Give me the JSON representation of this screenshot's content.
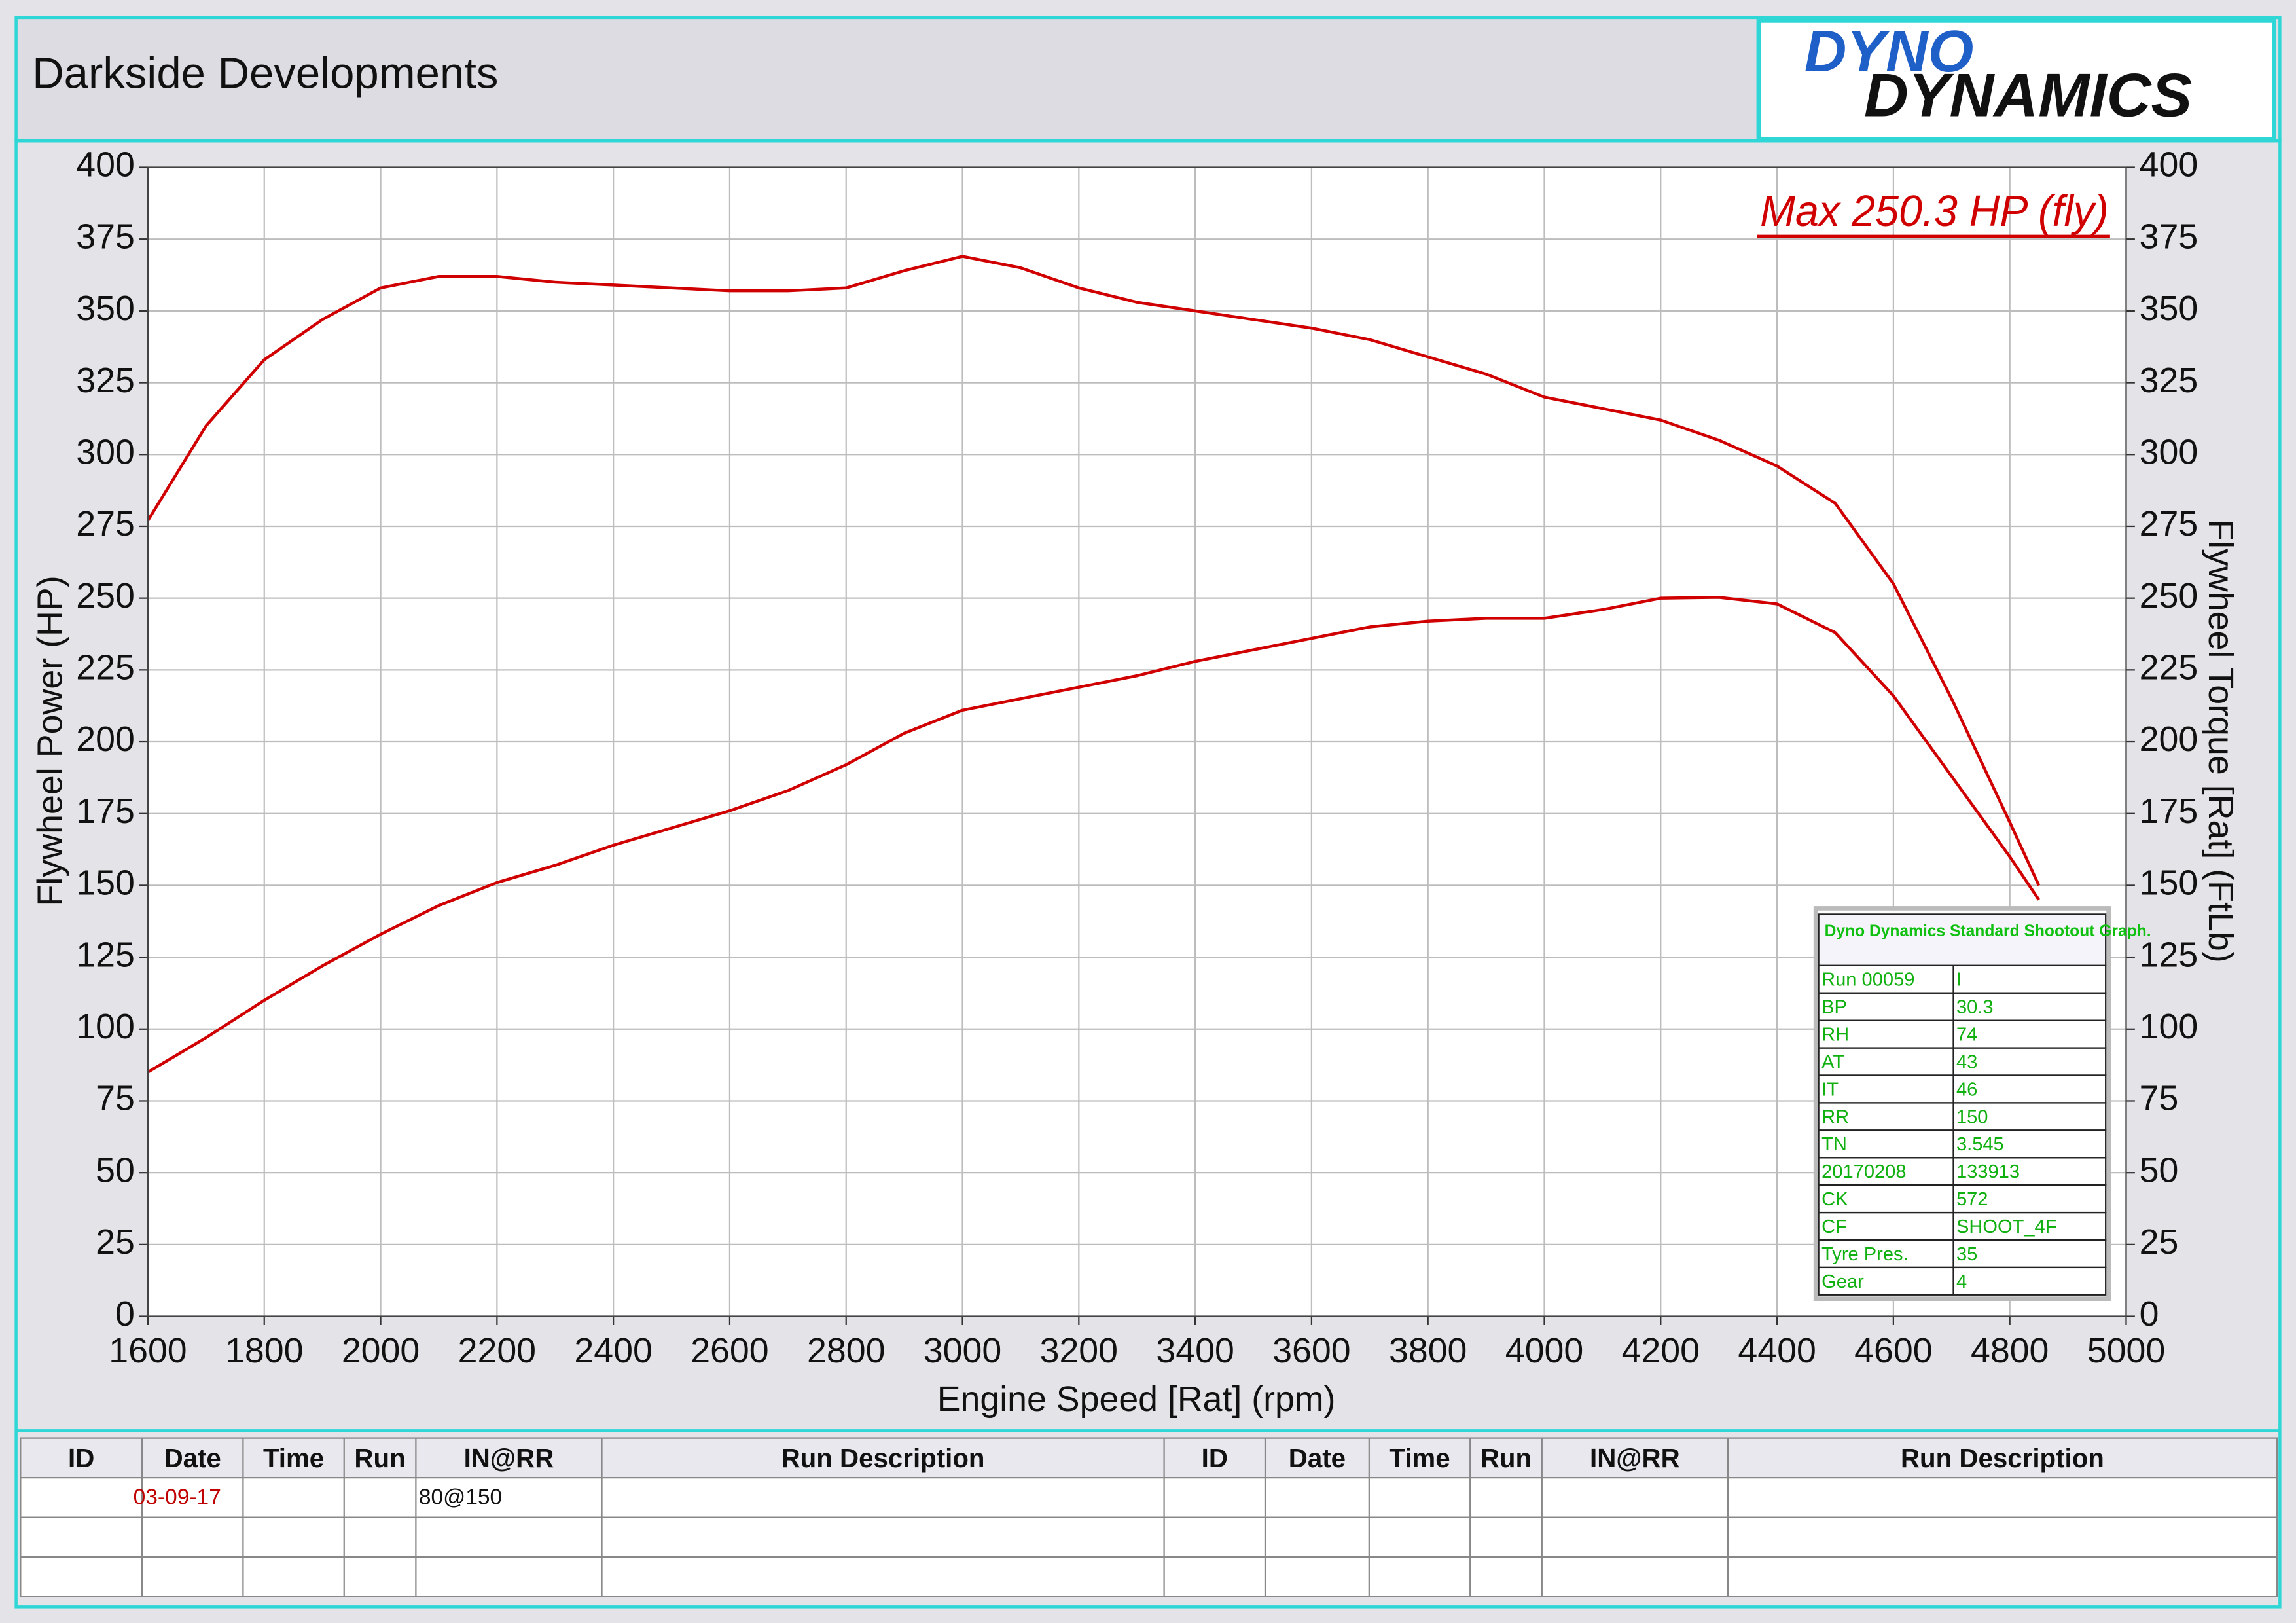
{
  "header": {
    "title": "Darkside Developments"
  },
  "logo": {
    "top": "DYNO",
    "bottom": "DYNAMICS"
  },
  "chart_data": {
    "type": "line",
    "x_label": "Engine Speed [Rat] (rpm)",
    "y_label": "Flywheel Power (HP)",
    "y2_label": "Flywheel Torque [Rat] (FtLb)",
    "annotation": "Max 250.3 HP (fly)",
    "grid": true,
    "x": [
      1600,
      1700,
      1800,
      1900,
      2000,
      2100,
      2200,
      2300,
      2400,
      2500,
      2600,
      2700,
      2800,
      2900,
      3000,
      3100,
      3200,
      3300,
      3400,
      3500,
      3600,
      3700,
      3800,
      3900,
      4000,
      4100,
      4200,
      4300,
      4400,
      4500,
      4600,
      4700,
      4800,
      4850
    ],
    "series": [
      {
        "color": "#d10000",
        "axis": "y2",
        "values": [
          277,
          310,
          333,
          347,
          358,
          362,
          362,
          360,
          359,
          358,
          357,
          357,
          358,
          364,
          369,
          365,
          358,
          353,
          350,
          347,
          344,
          340,
          334,
          328,
          320,
          316,
          312,
          305,
          296,
          283,
          255,
          215,
          172,
          150
        ]
      },
      {
        "color": "#d10000",
        "values": [
          85,
          97,
          110,
          122,
          133,
          143,
          151,
          157,
          164,
          170,
          176,
          183,
          192,
          203,
          211,
          215,
          219,
          223,
          228,
          232,
          236,
          240,
          242,
          243,
          243,
          246,
          250,
          250.3,
          248,
          238,
          216,
          188,
          160,
          145
        ]
      }
    ],
    "xlim": [
      1600,
      5000
    ],
    "xticks": [
      1600,
      1800,
      2000,
      2200,
      2400,
      2600,
      2800,
      3000,
      3200,
      3400,
      3600,
      3800,
      4000,
      4200,
      4400,
      4600,
      4800,
      5000
    ],
    "ylim": [
      0,
      400
    ],
    "yticks": [
      0,
      25,
      50,
      75,
      100,
      125,
      150,
      175,
      200,
      225,
      250,
      275,
      300,
      325,
      350,
      375,
      400
    ],
    "y2lim": [
      0,
      400
    ],
    "y2ticks": [
      0,
      25,
      50,
      75,
      100,
      125,
      150,
      175,
      200,
      225,
      250,
      275,
      300,
      325,
      350,
      375,
      400
    ]
  },
  "info_box": {
    "title": "Dyno Dynamics Standard Shootout Graph.",
    "rows": [
      [
        "Run 00059",
        "I"
      ],
      [
        "BP",
        "30.3"
      ],
      [
        "RH",
        "74"
      ],
      [
        "AT",
        "43"
      ],
      [
        "IT",
        "46"
      ],
      [
        "RR",
        "150"
      ],
      [
        "TN",
        "3.545"
      ],
      [
        "20170208",
        "133913"
      ],
      [
        "CK",
        "572"
      ],
      [
        "CF",
        "SHOOT_4F"
      ],
      [
        "Tyre Pres.",
        "35"
      ],
      [
        "Gear",
        "4"
      ]
    ]
  },
  "table": {
    "headers": [
      "ID",
      "Date",
      "Time",
      "Run",
      "IN@RR",
      "Run Description",
      "ID",
      "Date",
      "Time",
      "Run",
      "IN@RR",
      "Run Description"
    ],
    "row_1": {
      "date": "03-09-17",
      "in_rr": "80@150"
    }
  }
}
